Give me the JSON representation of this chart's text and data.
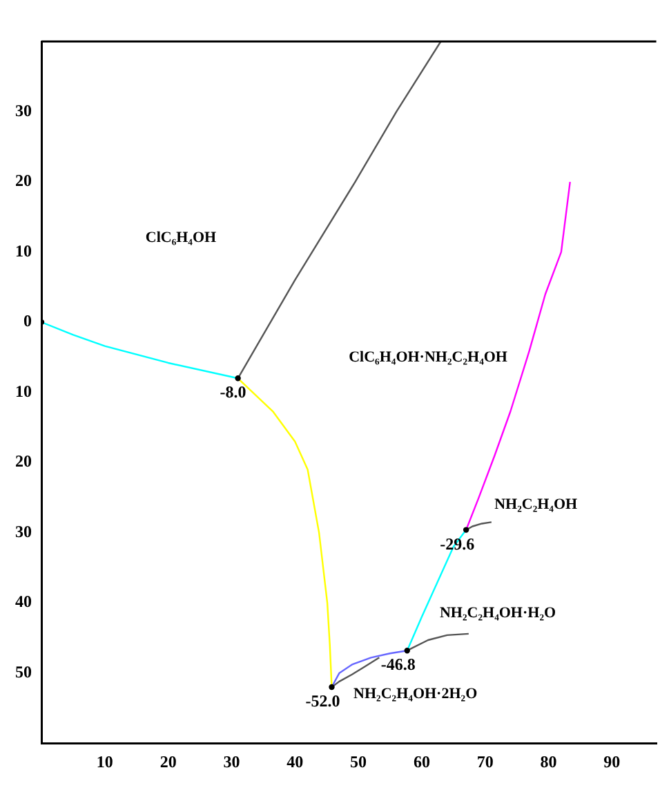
{
  "chart_data": {
    "type": "line",
    "xlim": [
      0,
      97
    ],
    "ylim": [
      -60,
      40
    ],
    "xticks": [
      10,
      20,
      30,
      40,
      50,
      60,
      70,
      80,
      90
    ],
    "yticks": [
      {
        "value": -50,
        "label": "50"
      },
      {
        "value": -40,
        "label": "40"
      },
      {
        "value": -30,
        "label": "30"
      },
      {
        "value": -20,
        "label": "20"
      },
      {
        "value": -10,
        "label": "10"
      },
      0,
      10,
      20,
      30
    ],
    "grid": false,
    "legend": false,
    "marker": "none",
    "line_style": "solid",
    "series": [
      {
        "color": "#00ffff",
        "x": [
          0,
          5,
          10,
          20,
          31
        ],
        "values": [
          0,
          -1.8,
          -3.4,
          -5.8,
          -8.0
        ]
      },
      {
        "color": "#555555",
        "x": [
          31,
          40,
          49.5,
          56,
          63
        ],
        "values": [
          -8.0,
          6,
          20,
          30,
          40
        ]
      },
      {
        "color": "#ffff00",
        "x": [
          31,
          36.5,
          40,
          42,
          43.8,
          45.1,
          45.5,
          45.8
        ],
        "values": [
          -8.0,
          -12.7,
          -17,
          -21,
          -30,
          -40,
          -46,
          -52.0
        ]
      },
      {
        "color": "#6666ff",
        "x": [
          45.8,
          47,
          49,
          52,
          55,
          57.7
        ],
        "values": [
          -52.0,
          -50,
          -48.8,
          -47.8,
          -47.2,
          -46.8
        ]
      },
      {
        "color": "#00ffff",
        "x": [
          57.7,
          60,
          62.5,
          65,
          67
        ],
        "values": [
          -46.8,
          -42,
          -37,
          -32,
          -29.6
        ]
      },
      {
        "color": "#ff00ff",
        "x": [
          67,
          69,
          71.5,
          74,
          77,
          79.5,
          82,
          83.4
        ],
        "values": [
          -29.6,
          -25,
          -19,
          -12.7,
          -4,
          4,
          10,
          20
        ]
      },
      {
        "color": "#555555",
        "x": [
          67,
          68,
          69.5,
          71
        ],
        "values": [
          -29.6,
          -29.1,
          -28.7,
          -28.5
        ]
      },
      {
        "color": "#555555",
        "x": [
          57.7,
          61,
          64,
          67.4
        ],
        "values": [
          -46.8,
          -45.3,
          -44.6,
          -44.4
        ]
      },
      {
        "color": "#555555",
        "x": [
          45.8,
          47,
          49,
          51,
          53.3
        ],
        "values": [
          -52.0,
          -51.2,
          -50.2,
          -49.1,
          -47.8
        ]
      },
      {
        "type": "scatter",
        "marker": "circle",
        "color": "#000000",
        "x": [
          0,
          31,
          45.8,
          57.7,
          67
        ],
        "values": [
          0,
          -8.0,
          -52.0,
          -46.8,
          -29.6
        ]
      }
    ],
    "annotations": [
      "ClC₆H₄OH",
      "ClC₆H₄OH·NH₂C₂H₄OH",
      "NH₂C₂H₄OH",
      "NH₂C₂H₄OH·H₂O",
      "NH₂C₂H₄OH·2H₂O",
      {
        "text": "-8.0",
        "x": 31,
        "y": -8.0
      },
      {
        "text": "-52.0",
        "x": 45.8,
        "y": -52.0
      },
      {
        "text": "-46.8",
        "x": 57.7,
        "y": -46.8
      },
      {
        "text": "-29.6",
        "x": 67,
        "y": -29.6
      }
    ]
  }
}
